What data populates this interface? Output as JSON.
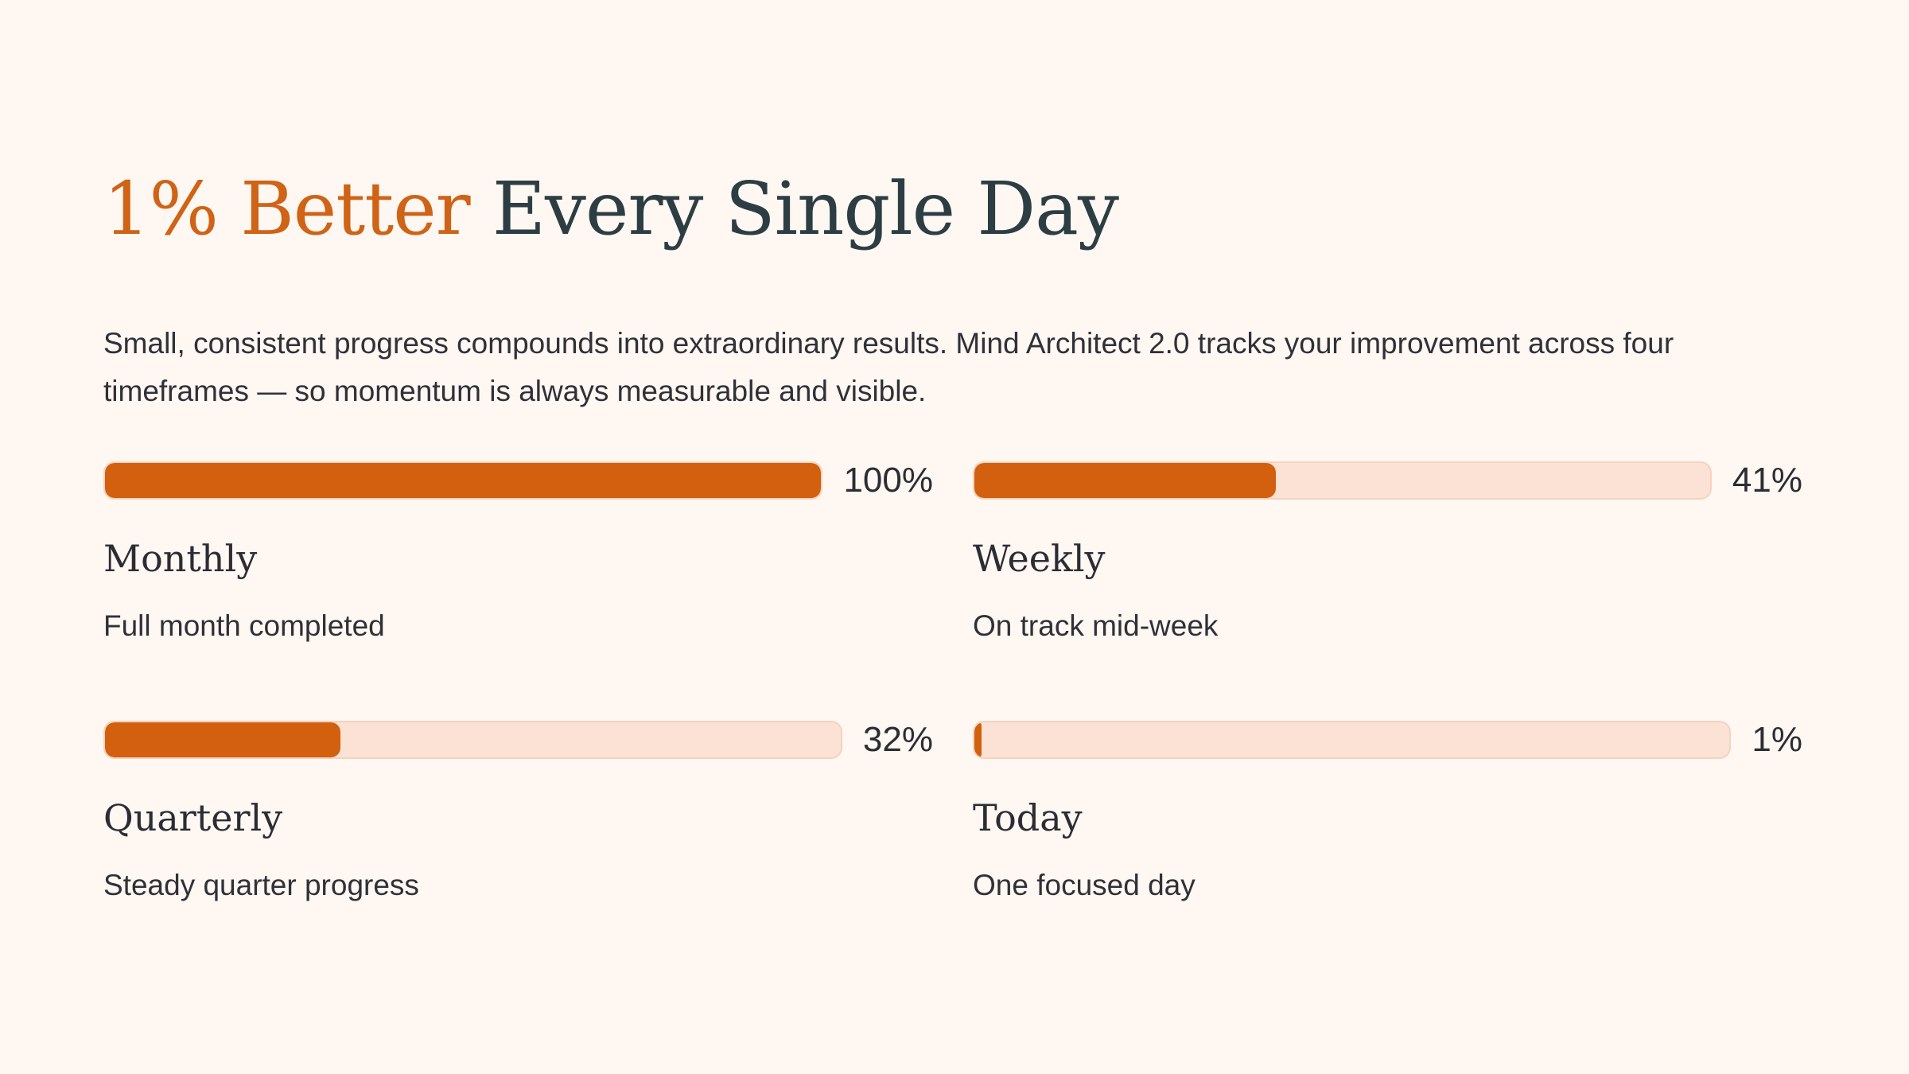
{
  "header": {
    "title_accent": "1% Better",
    "title_rest": "Every Single Day",
    "intro": "Small, consistent progress compounds into extraordinary results. Mind Architect 2.0 tracks your improvement across four timeframes — so momentum is always measurable and visible."
  },
  "colors": {
    "accent": "#cf6316",
    "bar_fill": "#d2600f",
    "bar_track": "#fbe2d4",
    "background": "#fff7f1",
    "heading": "#2c3e44"
  },
  "metrics": [
    {
      "label": "Monthly",
      "description": "Full month completed",
      "percent_text": "100%",
      "progress": 100
    },
    {
      "label": "Weekly",
      "description": "On track mid-week",
      "percent_text": "41%",
      "progress": 41
    },
    {
      "label": "Quarterly",
      "description": "Steady quarter progress",
      "percent_text": "32%",
      "progress": 32
    },
    {
      "label": "Today",
      "description": "One focused day",
      "percent_text": "1%",
      "progress": 1
    }
  ]
}
